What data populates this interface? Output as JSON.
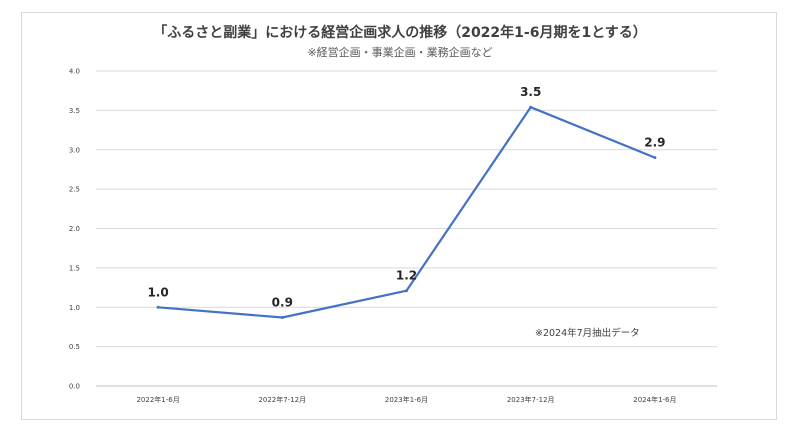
{
  "chart_data": {
    "type": "line",
    "title": "「ふるさと副業」における経営企画求人の推移（2022年1-6月期を1とする）",
    "subtitle": "※経営企画・事業企画・業務企画など",
    "categories": [
      "2022年1-6月",
      "2022年7-12月",
      "2023年1-6月",
      "2023年7-12月",
      "2024年1-6月"
    ],
    "series": [
      {
        "values": [
          1.0,
          0.87,
          1.21,
          3.54,
          2.9
        ]
      }
    ],
    "data_labels": [
      "1.0",
      "0.9",
      "1.2",
      "3.5",
      "2.9"
    ],
    "ylim": [
      0,
      4
    ],
    "yticks": [
      "0.0",
      "0.5",
      "1.0",
      "1.5",
      "2.0",
      "2.5",
      "3.0",
      "3.5",
      "4.0"
    ],
    "annotation": "※2024年7月抽出データ",
    "grid": true,
    "legend": "none",
    "colors": {
      "line": "#4472c4",
      "grid": "#d9d9d9",
      "axis": "#bfbfbf"
    }
  }
}
